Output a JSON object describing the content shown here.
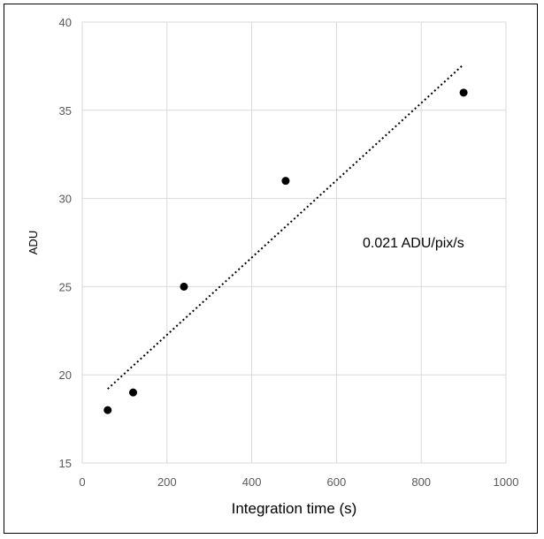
{
  "chart_data": {
    "type": "scatter",
    "title": "",
    "xlabel": "Integration time (s)",
    "ylabel": "ADU",
    "xlim": [
      0,
      1000
    ],
    "ylim": [
      15,
      40
    ],
    "xticks": [
      0,
      200,
      400,
      600,
      800,
      1000
    ],
    "yticks": [
      15,
      20,
      25,
      30,
      35,
      40
    ],
    "grid": true,
    "legend": "none",
    "series": [
      {
        "x": [
          60,
          120,
          240,
          480,
          900
        ],
        "y": [
          18,
          19,
          25,
          31,
          36
        ],
        "marker_color": "#000000"
      }
    ],
    "trendline": {
      "style": "dotted",
      "color": "#000000",
      "x": [
        60,
        900
      ],
      "y": [
        19.2,
        37.6
      ]
    },
    "annotations": [
      {
        "text": "0.021 ADU/pix/s"
      }
    ],
    "colors": {
      "grid": "#d9d9d9",
      "tick_text": "#595959",
      "frame": "#000000"
    }
  }
}
